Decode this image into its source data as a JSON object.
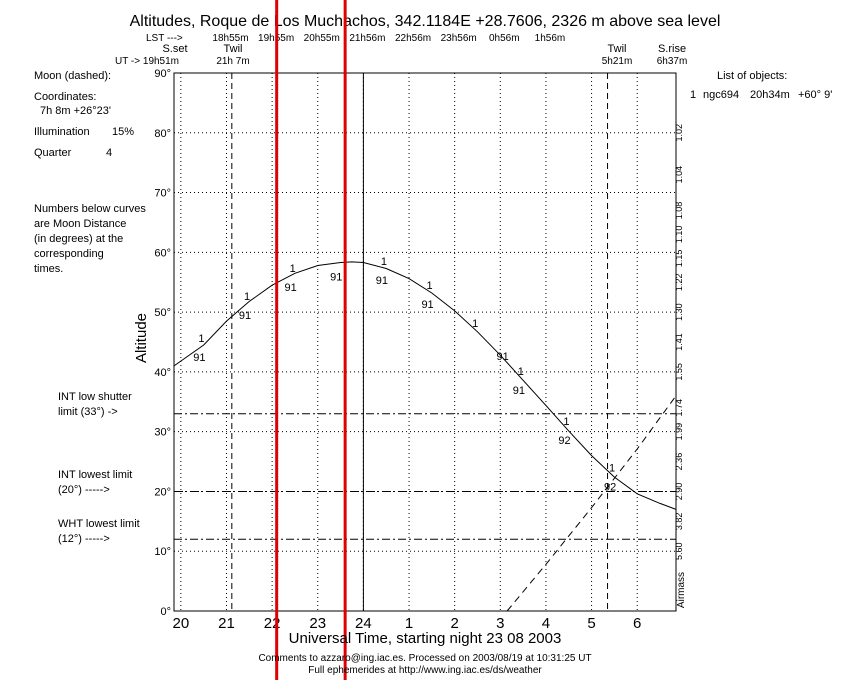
{
  "header": {
    "title": "Altitudes, Roque de Los Muchachos, 342.1184E +28.7606, 2326 m above sea level",
    "lst_label": "LST --->",
    "ut_label": "UT -> 19h51m"
  },
  "lst_ticks": [
    "18h55m",
    "19h55m",
    "20h55m",
    "21h56m",
    "22h56m",
    "23h56m",
    "0h56m",
    "1h56m"
  ],
  "events": {
    "sunset": {
      "label": "S.set",
      "time": "19h51m"
    },
    "twil_evening": {
      "label": "Twil",
      "time": "21h 7m"
    },
    "twil_morning": {
      "label": "Twil",
      "time": "5h21m"
    },
    "sunrise": {
      "label": "S.rise",
      "time": "6h37m"
    }
  },
  "moon_panel": {
    "moon_label": "Moon (dashed):",
    "coordinates_label": "Coordinates:",
    "coordinates_value": "7h 8m  +26°23'",
    "illumination_label": "Illumination",
    "illumination_value": "15%",
    "quarter_label": "Quarter",
    "quarter_value": "4",
    "note_lines": [
      "Numbers below curves",
      "are Moon Distance",
      "(in degrees) at the",
      "corresponding",
      "times."
    ]
  },
  "limits": [
    {
      "line1": "INT low shutter",
      "line2": "limit (33°) ->",
      "altitude": 33,
      "style": "dash-dot"
    },
    {
      "line1": "INT lowest limit",
      "line2": "(20°) ----->",
      "altitude": 20,
      "style": "dash-dot"
    },
    {
      "line1": "WHT lowest limit",
      "line2": "(12°) ----->",
      "altitude": 12,
      "style": "dash-dot"
    }
  ],
  "objects_panel": {
    "title": "List of objects:",
    "items": [
      {
        "index": "1",
        "name": "ngc694",
        "ra": "20h34m",
        "dec": "+60° 9'"
      }
    ]
  },
  "footer": {
    "line1": "Comments to azzaro@ing.iac.es. Processed on 2003/08/19 at 10:31:25 UT",
    "line2": "Full ephemerides at http://www.ing.iac.es/ds/weather"
  },
  "colors": {
    "object_curve": "#000000",
    "moon_distance_text": "#1a1aa8",
    "object_index_marker": "#cc00cc",
    "overlay_lines": "#e00000"
  },
  "chart_data": {
    "type": "line",
    "xlabel": "Universal Time, starting night 23 08 2003",
    "ylabel": "Altitude",
    "y2label": "Airmass",
    "xlim": [
      19.85,
      30.85
    ],
    "ylim": [
      0,
      90
    ],
    "x_tick_values": [
      20,
      21,
      22,
      23,
      24,
      25,
      26,
      27,
      28,
      29,
      30
    ],
    "x_tick_labels": [
      "20",
      "21",
      "22",
      "23",
      "24",
      "1",
      "2",
      "3",
      "4",
      "5",
      "6"
    ],
    "y_tick_values": [
      0,
      10,
      20,
      30,
      40,
      50,
      60,
      70,
      80,
      90
    ],
    "y_tick_labels": [
      "0°",
      "10°",
      "20°",
      "30°",
      "40°",
      "50°",
      "60°",
      "70°",
      "80°",
      "90°"
    ],
    "airmass_labels": [
      {
        "alt": 80,
        "text": "1.02"
      },
      {
        "alt": 73,
        "text": "1.04"
      },
      {
        "alt": 67,
        "text": "1.08"
      },
      {
        "alt": 63,
        "text": "1.10"
      },
      {
        "alt": 59,
        "text": "1.15"
      },
      {
        "alt": 55,
        "text": "1.22"
      },
      {
        "alt": 50,
        "text": "1.30"
      },
      {
        "alt": 45,
        "text": "1.41"
      },
      {
        "alt": 40,
        "text": "1.55"
      },
      {
        "alt": 34,
        "text": "1.74"
      },
      {
        "alt": 30,
        "text": "1.99"
      },
      {
        "alt": 25,
        "text": "2.36"
      },
      {
        "alt": 20,
        "text": "2.90"
      },
      {
        "alt": 15,
        "text": "3.82"
      },
      {
        "alt": 10,
        "text": "5.60"
      }
    ],
    "grid": "dotted",
    "series": [
      {
        "id": "ngc694",
        "style": "solid",
        "x": [
          19.85,
          20.5,
          21.0,
          21.5,
          22.0,
          22.5,
          23.0,
          23.5,
          23.75,
          24.0,
          24.5,
          25.0,
          25.5,
          26.0,
          26.5,
          27.0,
          27.5,
          28.0,
          28.5,
          29.0,
          29.5,
          30.0,
          30.5,
          30.85
        ],
        "y": [
          41,
          44.5,
          48.5,
          51.8,
          54.5,
          56.5,
          57.8,
          58.3,
          58.4,
          58.3,
          57.3,
          55.6,
          53.2,
          50.2,
          46.7,
          42.8,
          38.6,
          34.4,
          30.1,
          26.0,
          22.4,
          19.6,
          18.0,
          17.0
        ]
      },
      {
        "id": "moon",
        "style": "dashed",
        "x": [
          27.15,
          28.0,
          29.0,
          30.0,
          30.85
        ],
        "y": [
          0,
          7.8,
          17.3,
          27.1,
          36
        ]
      }
    ],
    "markers": [
      {
        "x": 20.45,
        "y": 44.5,
        "index": "1",
        "distance": "91"
      },
      {
        "x": 21.45,
        "y": 51.5,
        "index": "1",
        "distance": "91"
      },
      {
        "x": 22.45,
        "y": 56.2,
        "index": "1",
        "distance": "91"
      },
      {
        "x": 23.45,
        "y": 58.0,
        "index": "",
        "distance": "91"
      },
      {
        "x": 24.45,
        "y": 57.4,
        "index": "1",
        "distance": "91"
      },
      {
        "x": 25.45,
        "y": 53.4,
        "index": "1",
        "distance": "91"
      },
      {
        "x": 26.45,
        "y": 47.0,
        "index": "1",
        "distance": ""
      },
      {
        "x": 27.45,
        "y": 39.0,
        "index": "1",
        "distance": "91"
      },
      {
        "x": 28.45,
        "y": 30.6,
        "index": "1",
        "distance": "92"
      },
      {
        "x": 29.45,
        "y": 22.8,
        "index": "1",
        "distance": "92"
      }
    ],
    "standalone_labels": [
      {
        "x": 27.05,
        "y": 42.0,
        "text": "91"
      }
    ],
    "event_lines": [
      {
        "x": 21.117,
        "style": "dashed"
      },
      {
        "x": 29.35,
        "style": "dashed"
      },
      {
        "x": 24.0,
        "style": "solid"
      }
    ],
    "overlay_lines_ut": [
      22.1,
      23.6
    ]
  }
}
